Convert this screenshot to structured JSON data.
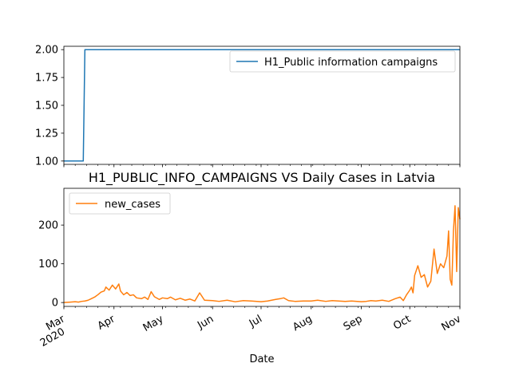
{
  "chart_data": [
    {
      "type": "line",
      "title": "",
      "xlabel": "",
      "ylabel": "",
      "ylim": [
        0.97,
        2.03
      ],
      "yticks": [
        1.0,
        1.25,
        1.5,
        1.75,
        2.0
      ],
      "ytick_labels": [
        "1.00",
        "1.25",
        "1.50",
        "1.75",
        "2.00"
      ],
      "legend_position": "top-right",
      "grid": false,
      "series": [
        {
          "name": "H1_Public information campaigns",
          "color": "#1f77b4",
          "x": [
            "2020-03-01",
            "2020-03-13",
            "2020-03-14",
            "2020-11-01"
          ],
          "values": [
            1,
            1,
            2,
            2
          ]
        }
      ]
    },
    {
      "type": "line",
      "title": "H1_PUBLIC_INFO_CAMPAIGNS VS Daily Cases in Latvia",
      "xlabel": "Date",
      "ylabel": "",
      "ylim": [
        -10,
        295
      ],
      "yticks": [
        0,
        100,
        200
      ],
      "ytick_labels": [
        "0",
        "100",
        "200"
      ],
      "legend_position": "top-left",
      "grid": false,
      "xtick_labels": [
        {
          "date": "2020-03-01",
          "label": "Mar",
          "sub": "2020"
        },
        {
          "date": "2020-04-01",
          "label": "Apr",
          "sub": ""
        },
        {
          "date": "2020-05-01",
          "label": "May",
          "sub": ""
        },
        {
          "date": "2020-06-01",
          "label": "Jun",
          "sub": ""
        },
        {
          "date": "2020-07-01",
          "label": "Jul",
          "sub": ""
        },
        {
          "date": "2020-08-01",
          "label": "Aug",
          "sub": ""
        },
        {
          "date": "2020-09-01",
          "label": "Sep",
          "sub": ""
        },
        {
          "date": "2020-10-01",
          "label": "Oct",
          "sub": ""
        },
        {
          "date": "2020-11-01",
          "label": "Nov",
          "sub": ""
        }
      ],
      "series": [
        {
          "name": "new_cases",
          "color": "#ff7f0e",
          "x": [
            "2020-03-01",
            "2020-03-05",
            "2020-03-08",
            "2020-03-10",
            "2020-03-12",
            "2020-03-14",
            "2020-03-16",
            "2020-03-18",
            "2020-03-20",
            "2020-03-22",
            "2020-03-24",
            "2020-03-26",
            "2020-03-27",
            "2020-03-29",
            "2020-03-31",
            "2020-04-02",
            "2020-04-04",
            "2020-04-05",
            "2020-04-07",
            "2020-04-09",
            "2020-04-11",
            "2020-04-13",
            "2020-04-15",
            "2020-04-18",
            "2020-04-20",
            "2020-04-22",
            "2020-04-24",
            "2020-04-26",
            "2020-04-29",
            "2020-05-01",
            "2020-05-04",
            "2020-05-06",
            "2020-05-09",
            "2020-05-12",
            "2020-05-15",
            "2020-05-18",
            "2020-05-21",
            "2020-05-24",
            "2020-05-27",
            "2020-06-01",
            "2020-06-05",
            "2020-06-10",
            "2020-06-15",
            "2020-06-20",
            "2020-06-25",
            "2020-07-01",
            "2020-07-05",
            "2020-07-10",
            "2020-07-13",
            "2020-07-15",
            "2020-07-18",
            "2020-07-22",
            "2020-07-27",
            "2020-08-01",
            "2020-08-05",
            "2020-08-10",
            "2020-08-14",
            "2020-08-18",
            "2020-08-22",
            "2020-08-26",
            "2020-09-01",
            "2020-09-04",
            "2020-09-07",
            "2020-09-10",
            "2020-09-14",
            "2020-09-18",
            "2020-09-22",
            "2020-09-25",
            "2020-09-27",
            "2020-09-29",
            "2020-10-01",
            "2020-10-02",
            "2020-10-03",
            "2020-10-04",
            "2020-10-06",
            "2020-10-08",
            "2020-10-10",
            "2020-10-12",
            "2020-10-14",
            "2020-10-16",
            "2020-10-18",
            "2020-10-20",
            "2020-10-22",
            "2020-10-24",
            "2020-10-25",
            "2020-10-26",
            "2020-10-27",
            "2020-10-28",
            "2020-10-29",
            "2020-10-30",
            "2020-10-31",
            "2020-11-01"
          ],
          "values": [
            0,
            1,
            2,
            1,
            3,
            4,
            6,
            10,
            14,
            20,
            27,
            30,
            40,
            32,
            45,
            35,
            48,
            30,
            20,
            26,
            18,
            20,
            12,
            10,
            14,
            8,
            28,
            15,
            8,
            12,
            10,
            14,
            7,
            11,
            6,
            9,
            4,
            25,
            6,
            5,
            3,
            6,
            2,
            5,
            4,
            2,
            4,
            8,
            10,
            12,
            5,
            3,
            4,
            4,
            6,
            3,
            5,
            4,
            3,
            4,
            2,
            3,
            5,
            4,
            6,
            3,
            10,
            14,
            5,
            20,
            32,
            40,
            25,
            70,
            95,
            65,
            72,
            40,
            55,
            138,
            75,
            100,
            90,
            120,
            185,
            60,
            45,
            185,
            250,
            80,
            245,
            215
          ]
        }
      ]
    }
  ]
}
